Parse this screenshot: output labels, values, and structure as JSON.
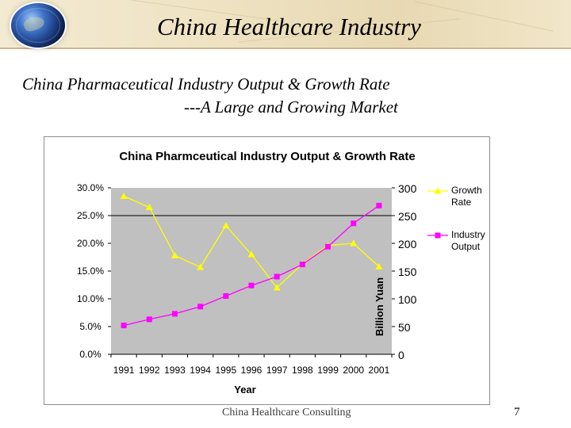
{
  "slide": {
    "title": "China Healthcare Industry",
    "subtitle_line1": "China Pharmaceutical Industry Output & Growth Rate",
    "subtitle_line2": "---A Large and Growing Market",
    "footer": "China Healthcare Consulting",
    "page_number": "7"
  },
  "chart_data": {
    "type": "line",
    "title": "China Pharmceutical Industry Output & Growth Rate",
    "xlabel": "Year",
    "ylabel_right": "Billion Yuan",
    "categories": [
      "1991",
      "1992",
      "1993",
      "1994",
      "1995",
      "1996",
      "1997",
      "1998",
      "1999",
      "2000",
      "2001"
    ],
    "y_left_ticks": [
      "30.0%",
      "25.0%",
      "20.0%",
      "15.0%",
      "10.0%",
      "5.0%",
      "0.0%"
    ],
    "y_right_ticks": [
      "300",
      "250",
      "200",
      "150",
      "100",
      "50",
      "0"
    ],
    "y_left_range": [
      0,
      30
    ],
    "y_right_range": [
      0,
      300
    ],
    "grid": "horizontal at 250",
    "plot_background": "#c0c0c0",
    "legend_position": "right",
    "series": [
      {
        "name": "Growth Rate",
        "axis": "left",
        "color": "#ffff00",
        "marker": "triangle",
        "values": [
          28.5,
          26.5,
          17.8,
          15.7,
          23.2,
          18.0,
          12.0,
          16.3,
          19.6,
          20.0,
          15.8
        ]
      },
      {
        "name": "Industry Output",
        "axis": "right",
        "color": "#ff00ff",
        "marker": "square",
        "values": [
          52,
          63,
          73,
          86,
          105,
          124,
          140,
          162,
          194,
          236,
          268
        ]
      }
    ],
    "legend": [
      {
        "line1": "Growth",
        "line2": "Rate"
      },
      {
        "line1": "Industry",
        "line2": "Output"
      }
    ]
  }
}
